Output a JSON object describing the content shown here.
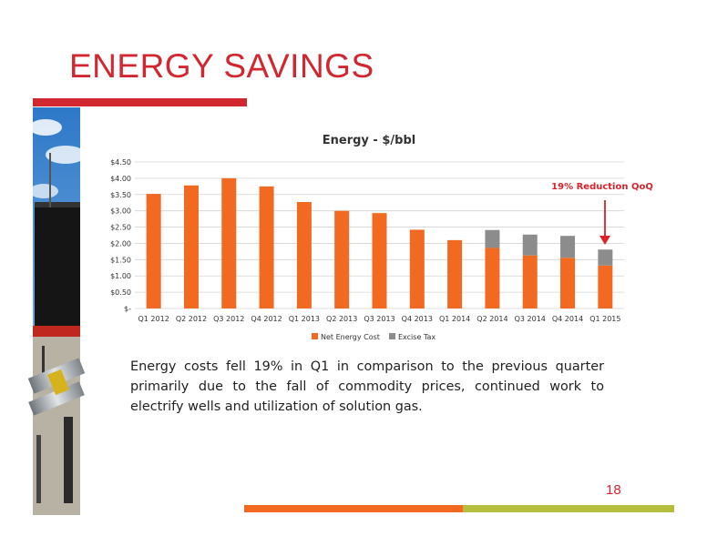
{
  "slide": {
    "title": "ENERGY SAVINGS",
    "body": "Energy costs fell 19% in Q1 in comparison to the previous quarter primarily due to the fall of commodity prices, continued work to electrify wells and utilization of solution gas.",
    "page_number": "18"
  },
  "colors": {
    "title_red": "#d22630",
    "net_energy": "#f26a21",
    "excise_tax": "#8c8c8c",
    "annotation": "#e0212b",
    "footer_orange": "#f26a21",
    "footer_green": "#b5bd3c"
  },
  "chart_data": {
    "type": "bar",
    "stacked": true,
    "title": "Energy - $/bbl",
    "categories": [
      "Q1 2012",
      "Q2 2012",
      "Q3 2012",
      "Q4 2012",
      "Q1 2013",
      "Q2 2013",
      "Q3 2013",
      "Q4 2013",
      "Q1 2014",
      "Q2 2014",
      "Q3 2014",
      "Q4 2014",
      "Q1 2015"
    ],
    "series": [
      {
        "name": "Net Energy Cost",
        "values": [
          3.52,
          3.78,
          4.0,
          3.75,
          3.27,
          3.0,
          2.93,
          2.42,
          2.1,
          1.86,
          1.63,
          1.56,
          1.32
        ]
      },
      {
        "name": "Excise Tax",
        "values": [
          0,
          0,
          0,
          0,
          0,
          0,
          0,
          0,
          0,
          0.55,
          0.64,
          0.67,
          0.49
        ]
      }
    ],
    "ylim": [
      0,
      4.5
    ],
    "yticks": [
      "$-",
      "$0.50",
      "$1.00",
      "$1.50",
      "$2.00",
      "$2.50",
      "$3.00",
      "$3.50",
      "$4.00",
      "$4.50"
    ],
    "grid": true,
    "legend": "bottom",
    "annotation": "19% Reduction QoQ"
  }
}
